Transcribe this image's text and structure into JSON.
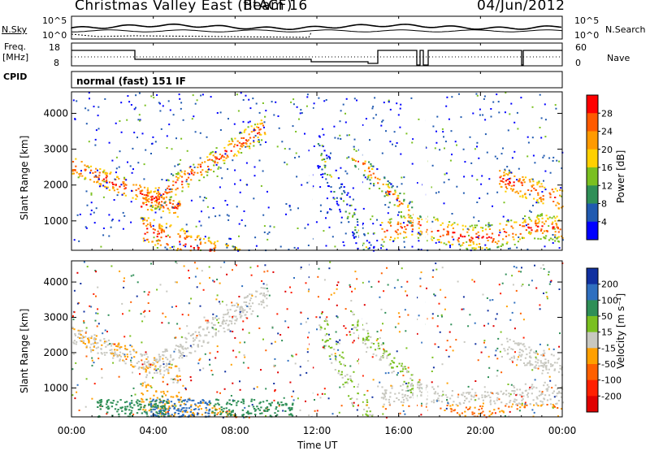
{
  "header": {
    "title": "Christmas Valley East (fitACF)",
    "beam": "Beam 16",
    "date": "04/Jun/2012"
  },
  "top_panels": {
    "nsky_label": "N.Sky",
    "nsky_ticks": [
      "10^5",
      "10^0"
    ],
    "nsearch_label": "N.Search",
    "nsearch_ticks": [
      "10^5",
      "10^0"
    ],
    "freq_label_line1": "Freq.",
    "freq_label_line2": "[MHz]",
    "freq_ticks": [
      "18",
      "8"
    ],
    "nave_label": "Nave",
    "nave_ticks": [
      "60",
      "0"
    ],
    "cpid_label": "CPID",
    "cpid_value": "normal (fast) 151 IF"
  },
  "chart_data": [
    {
      "type": "heatmap",
      "name": "power",
      "xlabel": "",
      "ylabel": "Slant Range [km]",
      "x_ticks": [
        "00:00",
        "04:00",
        "08:00",
        "12:00",
        "16:00",
        "20:00",
        "00:00"
      ],
      "y_ticks": [
        "1000",
        "2000",
        "3000",
        "4000"
      ],
      "ylim": [
        180,
        4600
      ],
      "colorbar_label": "Power [dB]",
      "colorbar_ticks": [
        "28",
        "24",
        "20",
        "16",
        "12",
        "8",
        "4"
      ],
      "colorbar_colors": [
        "#ff0000",
        "#ff5a00",
        "#ff9a00",
        "#ffd000",
        "#7ac020",
        "#2f8f57",
        "#205ab0",
        "#0000ff"
      ]
    },
    {
      "type": "heatmap",
      "name": "velocity",
      "xlabel": "Time UT",
      "ylabel": "Slant Range [km]",
      "x_ticks": [
        "00:00",
        "04:00",
        "08:00",
        "12:00",
        "16:00",
        "20:00",
        "00:00"
      ],
      "y_ticks": [
        "1000",
        "2000",
        "3000",
        "4000"
      ],
      "ylim": [
        180,
        4600
      ],
      "colorbar_label": "Velocity [m s⁻¹]",
      "colorbar_ticks": [
        "200",
        "100",
        "50",
        "15",
        "-15",
        "-50",
        "-100",
        "-200"
      ],
      "colorbar_colors": [
        "#1030a0",
        "#2f6fbf",
        "#2f8f57",
        "#7ac020",
        "#c8c8c0",
        "#ffa000",
        "#ff6000",
        "#ff2000",
        "#e00000"
      ]
    }
  ]
}
